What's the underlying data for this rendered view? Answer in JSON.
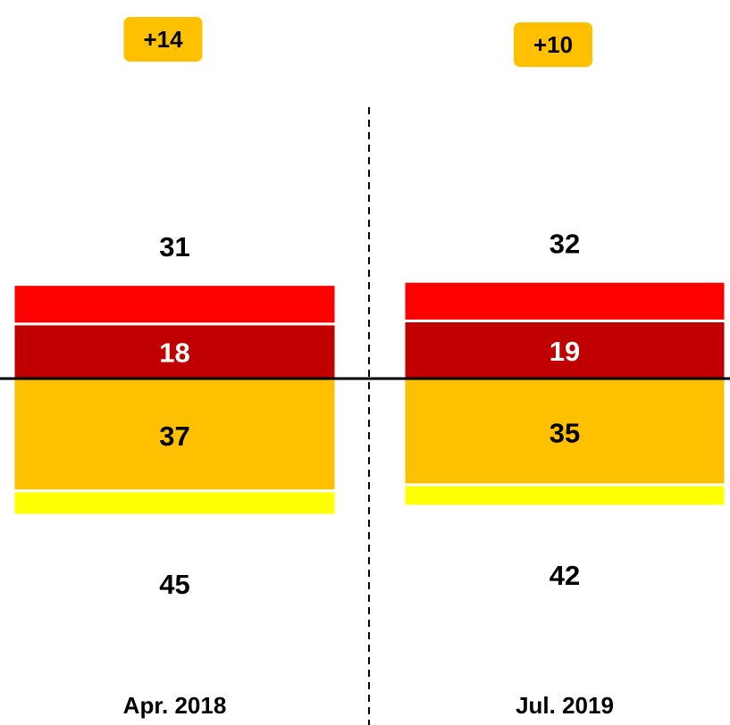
{
  "chart_data": {
    "type": "diverging_bar",
    "categories": [
      "Apr. 2018",
      "Jul. 2019"
    ],
    "series": [
      {
        "color": "#c00000",
        "side": "up",
        "labelled": true,
        "values": [
          18,
          19
        ]
      },
      {
        "color": "#ff0000",
        "side": "up",
        "labelled": false,
        "values": [
          13,
          13
        ]
      },
      {
        "color": "#ffc000",
        "side": "down",
        "labelled": true,
        "values": [
          37,
          35
        ]
      },
      {
        "color": "#ffff00",
        "side": "down",
        "labelled": false,
        "values": [
          8,
          7
        ]
      }
    ],
    "totals_up": [
      31,
      32
    ],
    "totals_down": [
      45,
      42
    ],
    "net": {
      "values": [
        14,
        10
      ],
      "value_labels": [
        "+14",
        "+10"
      ],
      "color": "#ffc000"
    }
  }
}
